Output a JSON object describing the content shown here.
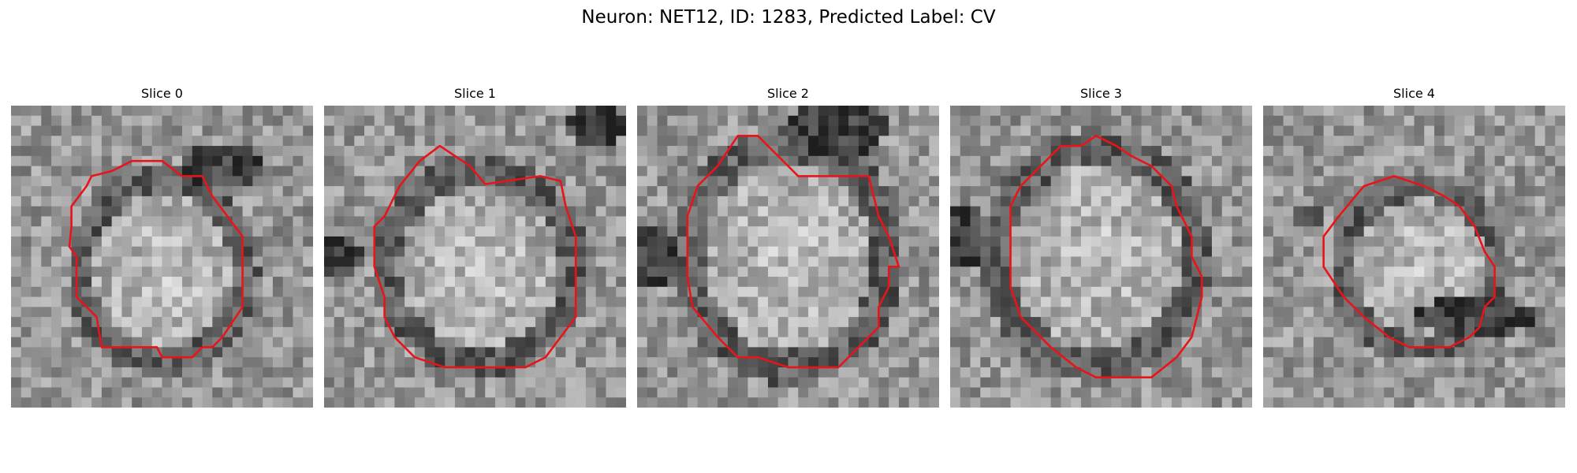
{
  "title": "Neuron: NET12, ID: 1283, Predicted Label: CV",
  "slices": [
    {
      "label": "Slice 0"
    },
    {
      "label": "Slice 1"
    },
    {
      "label": "Slice 2"
    },
    {
      "label": "Slice 3"
    },
    {
      "label": "Slice 4"
    }
  ],
  "contour_color": "#e8141a",
  "colormap": "grayscale"
}
